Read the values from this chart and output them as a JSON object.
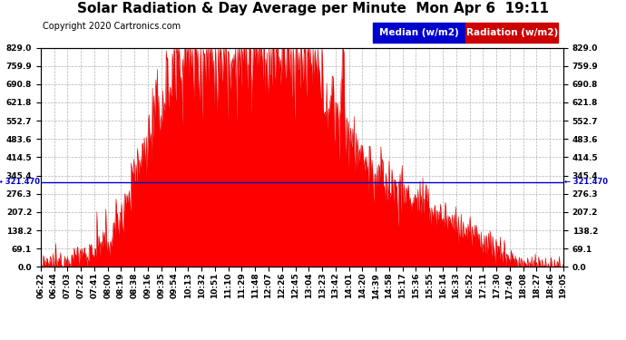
{
  "title": "Solar Radiation & Day Average per Minute  Mon Apr 6  19:11",
  "copyright": "Copyright 2020 Cartronics.com",
  "legend_median_label": "Median (w/m2)",
  "legend_radiation_label": "Radiation (w/m2)",
  "median_value": 321.47,
  "yticks": [
    0.0,
    69.1,
    138.2,
    207.2,
    276.3,
    345.4,
    414.5,
    483.6,
    552.7,
    621.8,
    690.8,
    759.9,
    829.0
  ],
  "ymax": 829.0,
  "ymin": 0.0,
  "bg_color": "#ffffff",
  "plot_bg_color": "#ffffff",
  "fill_color": "#ff0000",
  "line_color": "#dd0000",
  "median_color": "#0000cc",
  "grid_color": "#aaaaaa",
  "xtick_labels": [
    "06:22",
    "06:44",
    "07:03",
    "07:22",
    "07:41",
    "08:00",
    "08:19",
    "08:38",
    "09:16",
    "09:35",
    "09:54",
    "10:13",
    "10:32",
    "10:51",
    "11:10",
    "11:29",
    "11:48",
    "12:07",
    "12:26",
    "12:45",
    "13:04",
    "13:23",
    "13:42",
    "14:01",
    "14:20",
    "14:39",
    "14:58",
    "15:17",
    "15:36",
    "15:55",
    "16:14",
    "16:33",
    "16:52",
    "17:11",
    "17:30",
    "17:49",
    "18:08",
    "18:27",
    "18:46",
    "19:05"
  ],
  "title_fontsize": 11,
  "tick_fontsize": 6.5,
  "copyright_fontsize": 7,
  "legend_fontsize": 7.5
}
